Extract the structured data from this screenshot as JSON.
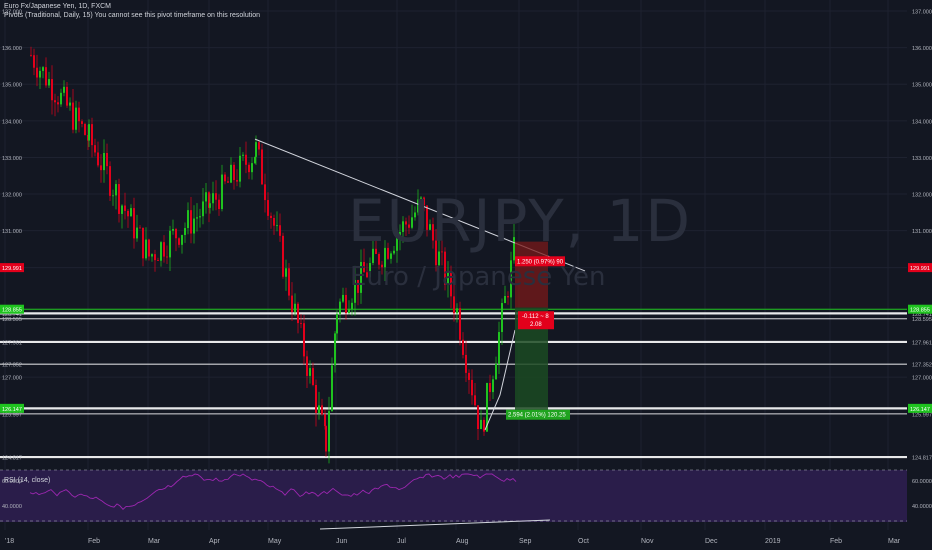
{
  "legend": {
    "title": "Euro Fx/Japanese Yen, 1D, FXCM",
    "pivot": "Pivots (Traditional, Daily, 15) You cannot see this pivot timeframe on this resolution"
  },
  "watermark": {
    "symbol": "EURJPY, 1D",
    "name": "Euro / Japanese Yen"
  },
  "rsi_label": "RSI (14, close)",
  "colors": {
    "background": "#131722",
    "up": "#26a69a",
    "down": "#ef5350",
    "bull_candle": "#1fc31f",
    "bear_candle": "#e3001b",
    "rsi_bg": "#2a1d4a",
    "rsi_line": "#9c27b0",
    "level": "#ffffff"
  },
  "chart_data": {
    "type": "candlestick",
    "symbol": "EUR/JPY",
    "timeframe": "1D",
    "ylim": [
      124.6,
      137.3
    ],
    "y_ticks": [
      137.0,
      136.0,
      135.0,
      134.0,
      133.0,
      132.0,
      131.0,
      129.991,
      128.855,
      128.741,
      128.595,
      127.961,
      127.352,
      127.0,
      126.147,
      125.997,
      124.817
    ],
    "x_ticks": [
      "'18",
      "Feb",
      "Mar",
      "Apr",
      "May",
      "Jun",
      "Jul",
      "Aug",
      "Sep",
      "Oct",
      "Nov",
      "Dec",
      "2019",
      "Feb",
      "Mar"
    ],
    "price_labels": [
      {
        "value": "129.991",
        "color": "#e3001b"
      },
      {
        "value": "128.855",
        "color": "#1fc31f"
      },
      {
        "value": "126.147",
        "color": "#1fc31f"
      }
    ],
    "horizontal_levels": [
      128.741,
      128.595,
      127.961,
      127.352,
      126.147,
      125.997,
      124.817
    ],
    "trendline": {
      "from": [
        "May",
        133.5
      ],
      "to": [
        "Sep",
        129.9
      ]
    },
    "key_closes": [
      {
        "date": "Jan",
        "value": 135.8
      },
      {
        "date": "Feb",
        "value": 133.5
      },
      {
        "date": "Mar",
        "value": 130.3
      },
      {
        "date": "Apr",
        "value": 131.7
      },
      {
        "date": "May",
        "value": 133.2
      },
      {
        "date": "May end",
        "value": 125.2
      },
      {
        "date": "Jun",
        "value": 128.9
      },
      {
        "date": "Jul",
        "value": 131.7
      },
      {
        "date": "Aug",
        "value": 128.8
      },
      {
        "date": "Aug mid",
        "value": 125.5
      },
      {
        "date": "Sep",
        "value": 130.7
      }
    ],
    "position": {
      "short_target_label": "2.594 (2.01%) 120.25",
      "stop_label": "1.250 (0.97%) 90",
      "ratio_label": "-0.112 ~ 8",
      "ratio_value": "2.08"
    },
    "rsi": {
      "levels": [
        60.0,
        40.0
      ],
      "ticks": [
        "60.0000",
        "40.0000"
      ]
    }
  }
}
